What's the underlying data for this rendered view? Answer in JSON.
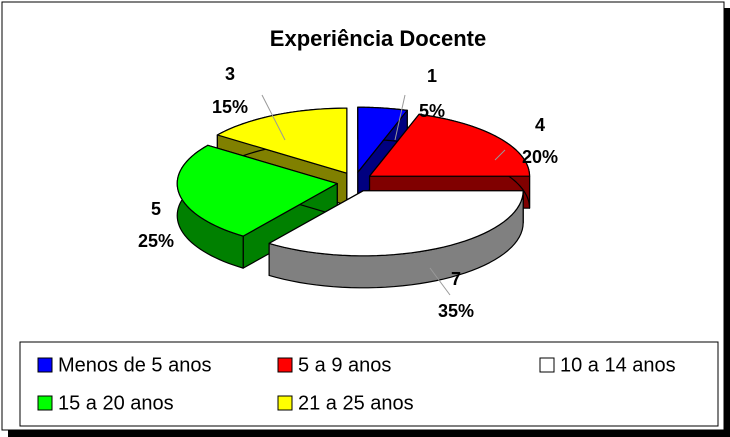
{
  "chart_data": {
    "type": "pie",
    "title": "Experiência Docente",
    "categories": [
      "Menos de 5 anos",
      "5 a 9 anos",
      "10 a 14 anos",
      "15 a 20 anos",
      "21 a 25 anos"
    ],
    "values": [
      1,
      4,
      7,
      5,
      3
    ],
    "percentages": [
      5,
      20,
      35,
      25,
      15
    ],
    "percent_labels": [
      "5%",
      "20%",
      "35%",
      "25%",
      "15%"
    ],
    "colors": [
      "#0000ff",
      "#ff0000",
      "#ffffff",
      "#00ff00",
      "#ffff00"
    ],
    "side_colors": [
      "#000080",
      "#800000",
      "#808080",
      "#008000",
      "#808000"
    ],
    "legend": "bottom"
  }
}
